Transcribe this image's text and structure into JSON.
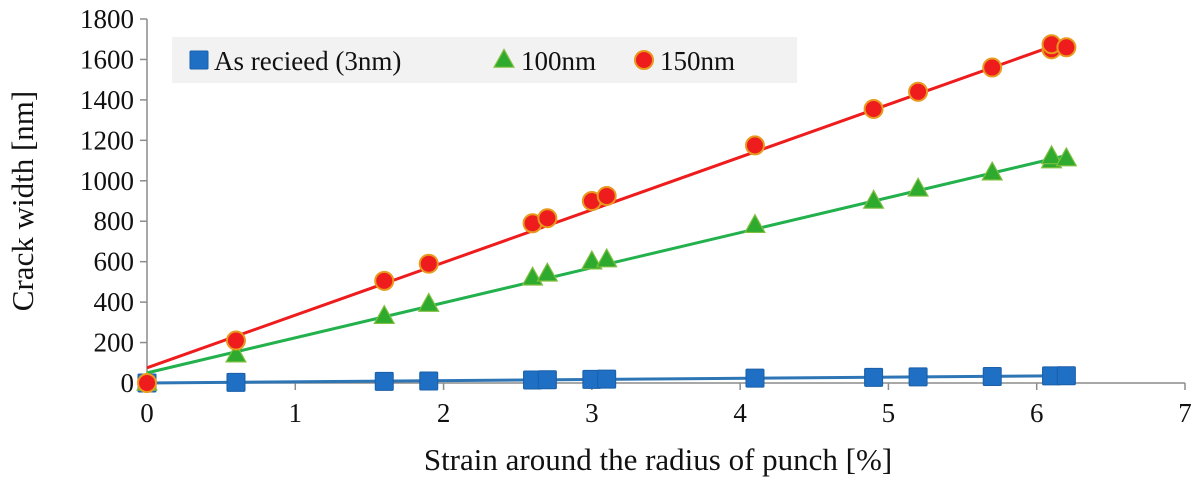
{
  "chart_data": {
    "type": "scatter",
    "title": "",
    "xlabel": "Strain around the radius of punch [%]",
    "ylabel": "Crack width [nm]",
    "xlim": [
      0,
      7
    ],
    "ylim": [
      0,
      1800
    ],
    "x_ticks": [
      0,
      1,
      2,
      3,
      4,
      5,
      6,
      7
    ],
    "y_ticks": [
      0,
      200,
      400,
      600,
      800,
      1000,
      1200,
      1400,
      1600,
      1800
    ],
    "grid": false,
    "legend_position": "top-left",
    "series": [
      {
        "name": "As recieed (3nm)",
        "marker": "square",
        "color": "#1f6fc5",
        "line_color": "#2e75b6",
        "x": [
          0,
          0.6,
          1.6,
          1.9,
          2.6,
          2.7,
          3.0,
          3.1,
          4.1,
          4.9,
          5.2,
          5.7,
          6.1,
          6.2
        ],
        "values": [
          0,
          3,
          8,
          10,
          15,
          16,
          18,
          19,
          24,
          28,
          30,
          32,
          35,
          36
        ],
        "trendline": {
          "x": [
            0,
            6.2
          ],
          "y": [
            0,
            36
          ]
        }
      },
      {
        "name": "100nm",
        "marker": "triangle",
        "color": "#2eab2e",
        "line_color": "#22b14c",
        "x": [
          0,
          0.6,
          1.6,
          1.9,
          2.6,
          2.7,
          3.0,
          3.1,
          4.1,
          4.9,
          5.2,
          5.7,
          6.1,
          6.1,
          6.2
        ],
        "values": [
          0,
          140,
          330,
          390,
          520,
          540,
          600,
          610,
          780,
          900,
          960,
          1040,
          1100,
          1120,
          1110
        ],
        "trendline": {
          "x": [
            0,
            6.2
          ],
          "y": [
            50,
            1125
          ]
        }
      },
      {
        "name": "150nm",
        "marker": "circle",
        "color": "#ee1c1c",
        "line_color": "#ee1c1c",
        "x": [
          0,
          0.6,
          1.6,
          1.9,
          2.6,
          2.7,
          3.0,
          3.1,
          4.1,
          4.9,
          5.2,
          5.7,
          6.1,
          6.1,
          6.2
        ],
        "values": [
          0,
          210,
          505,
          590,
          790,
          815,
          900,
          925,
          1175,
          1355,
          1440,
          1560,
          1650,
          1675,
          1660
        ],
        "trendline": {
          "x": [
            0,
            6.2
          ],
          "y": [
            75,
            1690
          ]
        }
      }
    ]
  }
}
